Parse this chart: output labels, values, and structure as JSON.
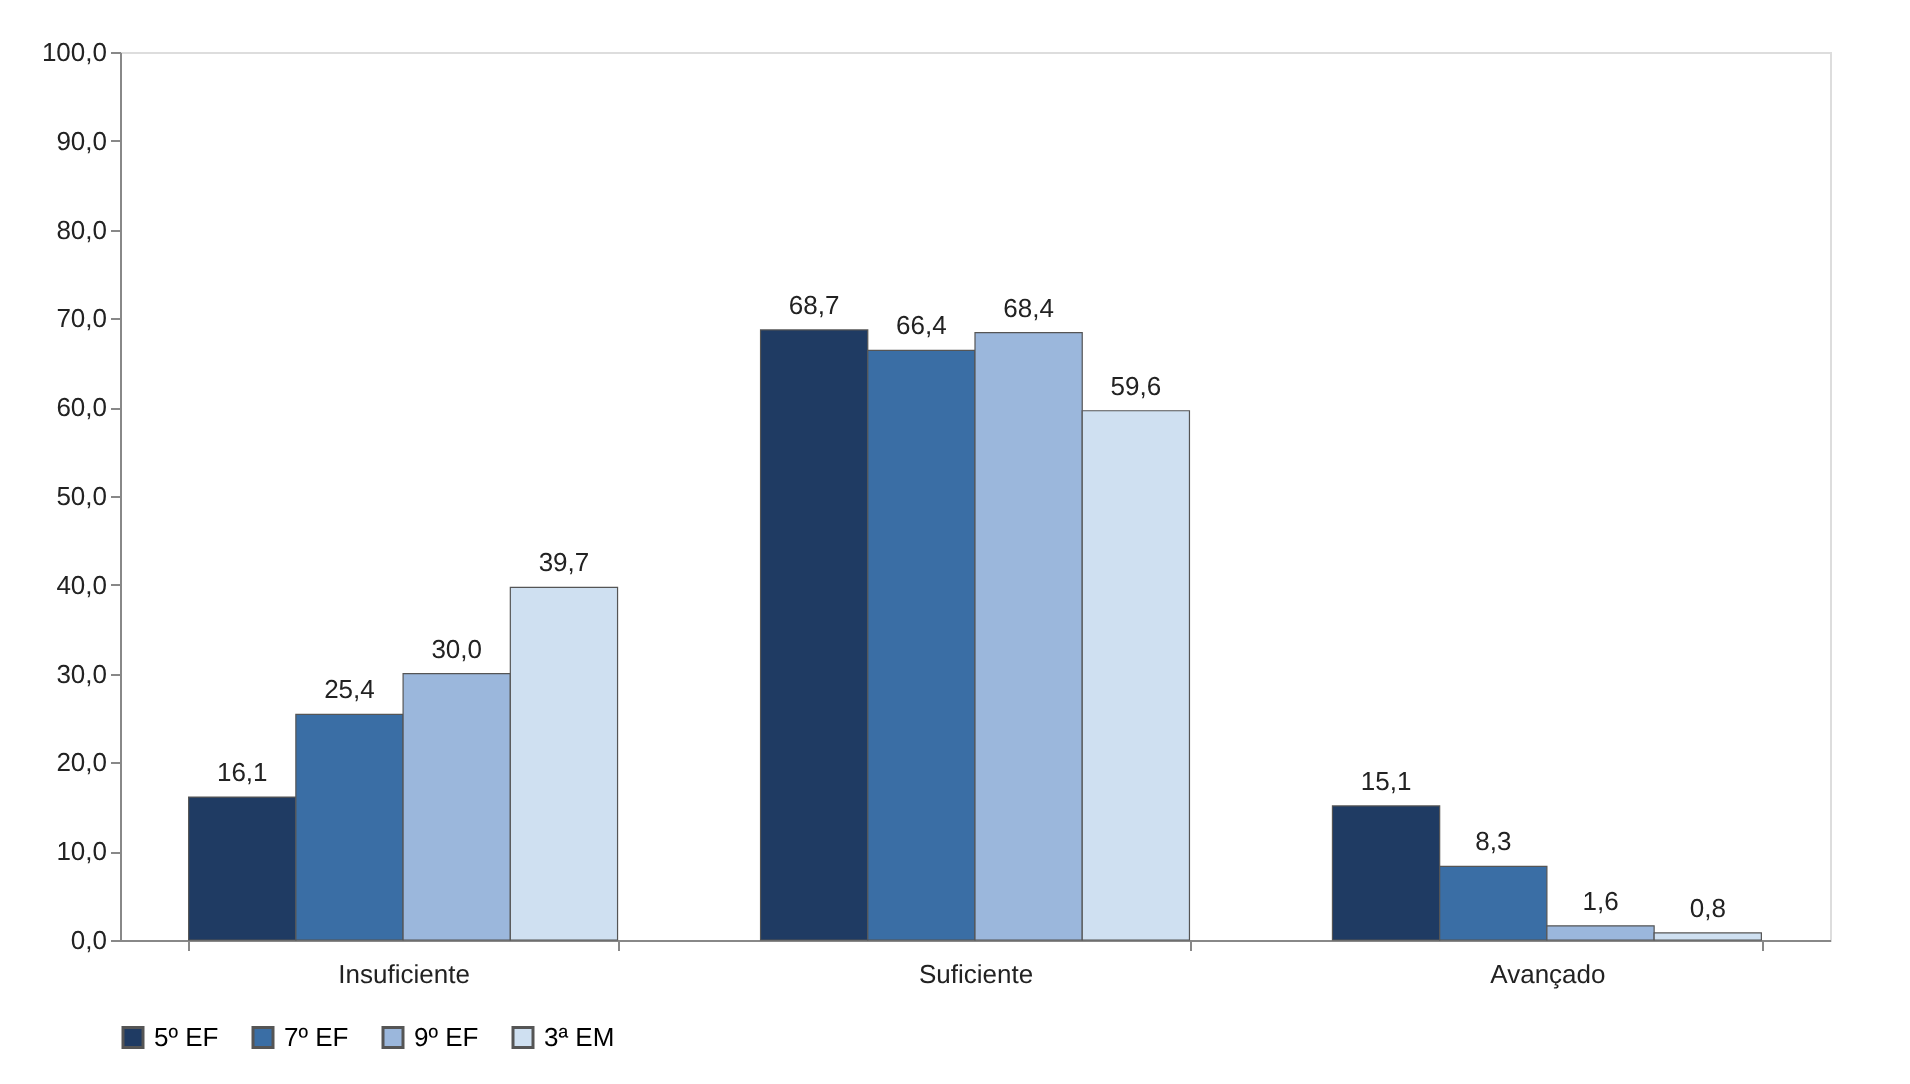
{
  "chart_data": {
    "type": "bar",
    "categories": [
      "Insuficiente",
      "Suficiente",
      "Avançado"
    ],
    "series": [
      {
        "name": "5º  EF",
        "color": "#1f3b63",
        "values": [
          16.1,
          68.7,
          15.1
        ],
        "value_labels": [
          "16,1",
          "68,7",
          "15,1"
        ]
      },
      {
        "name": "7º  EF",
        "color": "#3a6ea5",
        "values": [
          25.4,
          66.4,
          8.3
        ],
        "value_labels": [
          "25,4",
          "66,4",
          "8,3"
        ]
      },
      {
        "name": "9º  EF",
        "color": "#9bb7dc",
        "values": [
          30.0,
          68.4,
          1.6
        ],
        "value_labels": [
          "30,0",
          "68,4",
          "1,6"
        ]
      },
      {
        "name": "3ª  EM",
        "color": "#cfe0f1",
        "values": [
          39.7,
          59.6,
          0.8
        ],
        "value_labels": [
          "39,7",
          "59,6",
          "0,8"
        ]
      }
    ],
    "ylim": [
      0,
      100
    ],
    "yticks": [
      {
        "value": 0,
        "label": "0,0"
      },
      {
        "value": 10,
        "label": "10,0"
      },
      {
        "value": 20,
        "label": "20,0"
      },
      {
        "value": 30,
        "label": "30,0"
      },
      {
        "value": 40,
        "label": "40,0"
      },
      {
        "value": 50,
        "label": "50,0"
      },
      {
        "value": 60,
        "label": "60,0"
      },
      {
        "value": 70,
        "label": "70,0"
      },
      {
        "value": 80,
        "label": "80,0"
      },
      {
        "value": 90,
        "label": "90,0"
      },
      {
        "value": 100,
        "label": "100,0"
      }
    ],
    "grid": false,
    "legend": "bottom"
  }
}
